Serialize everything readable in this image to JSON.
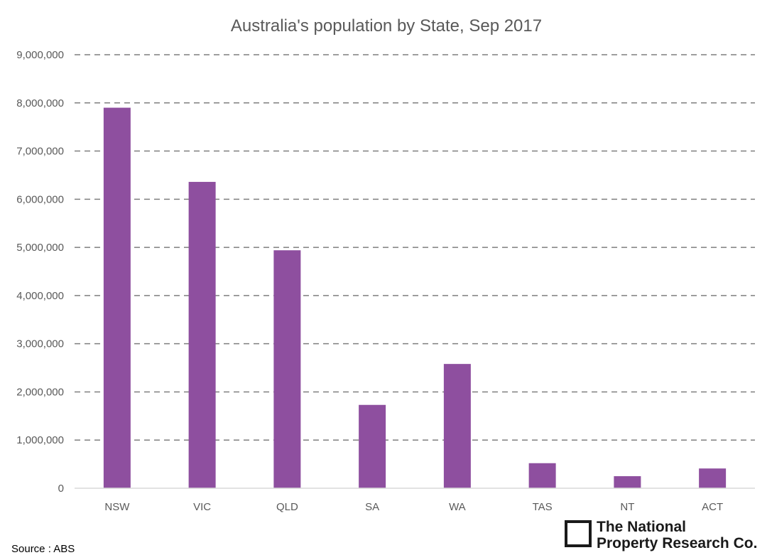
{
  "chart_data": {
    "type": "bar",
    "title": "Australia's population by State, Sep 2017",
    "xlabel": "",
    "ylabel": "",
    "categories": [
      "NSW",
      "VIC",
      "QLD",
      "SA",
      "WA",
      "TAS",
      "NT",
      "ACT"
    ],
    "values": [
      7900000,
      6360000,
      4940000,
      1730000,
      2580000,
      520000,
      250000,
      410000
    ],
    "ylim": [
      0,
      9000000
    ],
    "yticks": [
      0,
      1000000,
      2000000,
      3000000,
      4000000,
      5000000,
      6000000,
      7000000,
      8000000,
      9000000
    ],
    "ytick_labels": [
      "0",
      "1,000,000",
      "2,000,000",
      "3,000,000",
      "4,000,000",
      "5,000,000",
      "6,000,000",
      "7,000,000",
      "8,000,000",
      "9,000,000"
    ],
    "grid": "horizontal dashed",
    "legend": "none",
    "bar_color": "#8e4f9f"
  },
  "source": "Source : ABS",
  "logo": {
    "line1": "The National",
    "line2": "Property Research Co."
  }
}
